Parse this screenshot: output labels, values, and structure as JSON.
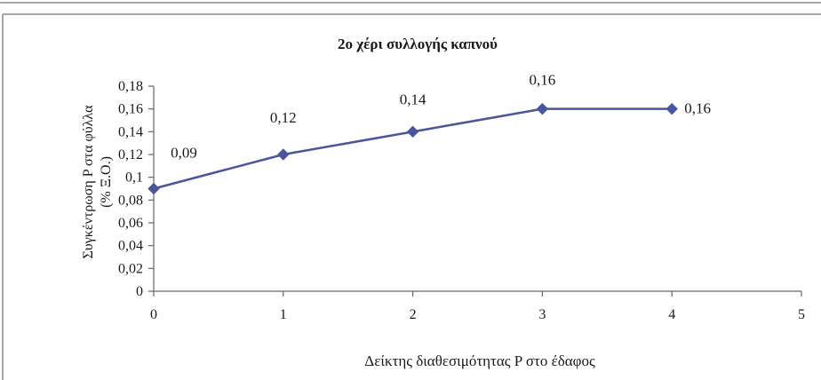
{
  "chart_data": {
    "type": "line",
    "title": "2ο χέρι συλλογής καπνού",
    "xlabel": "Δείκτης διαθεσιμότητας P στο έδαφος",
    "ylabel_line1": "Συγκέντρωση P στα φύλλα",
    "ylabel_line2": "(% Ξ.Ο.)",
    "x": [
      0,
      1,
      2,
      3,
      4
    ],
    "series": [
      {
        "values": [
          0.09,
          0.12,
          0.14,
          0.16,
          0.16
        ]
      }
    ],
    "data_labels": [
      "0,09",
      "0,12",
      "0,14",
      "0,16",
      "0,16"
    ],
    "xlim": [
      0,
      5
    ],
    "ylim": [
      0,
      0.18
    ],
    "x_ticks": [
      0,
      1,
      2,
      3,
      4,
      5
    ],
    "x_tick_labels": [
      "0",
      "1",
      "2",
      "3",
      "4",
      "5"
    ],
    "y_ticks": [
      0,
      0.02,
      0.04,
      0.06,
      0.08,
      0.1,
      0.12,
      0.14,
      0.16,
      0.18
    ],
    "y_tick_labels": [
      "0",
      "0,02",
      "0,04",
      "0,06",
      "0,08",
      "0,1",
      "0,12",
      "0,14",
      "0,16",
      "0,18"
    ],
    "grid": false,
    "legend": "none",
    "colors": {
      "series": "#4a569c",
      "axis": "#666666",
      "frame": "#8a8a8a",
      "text": "#1a1a1a"
    }
  }
}
